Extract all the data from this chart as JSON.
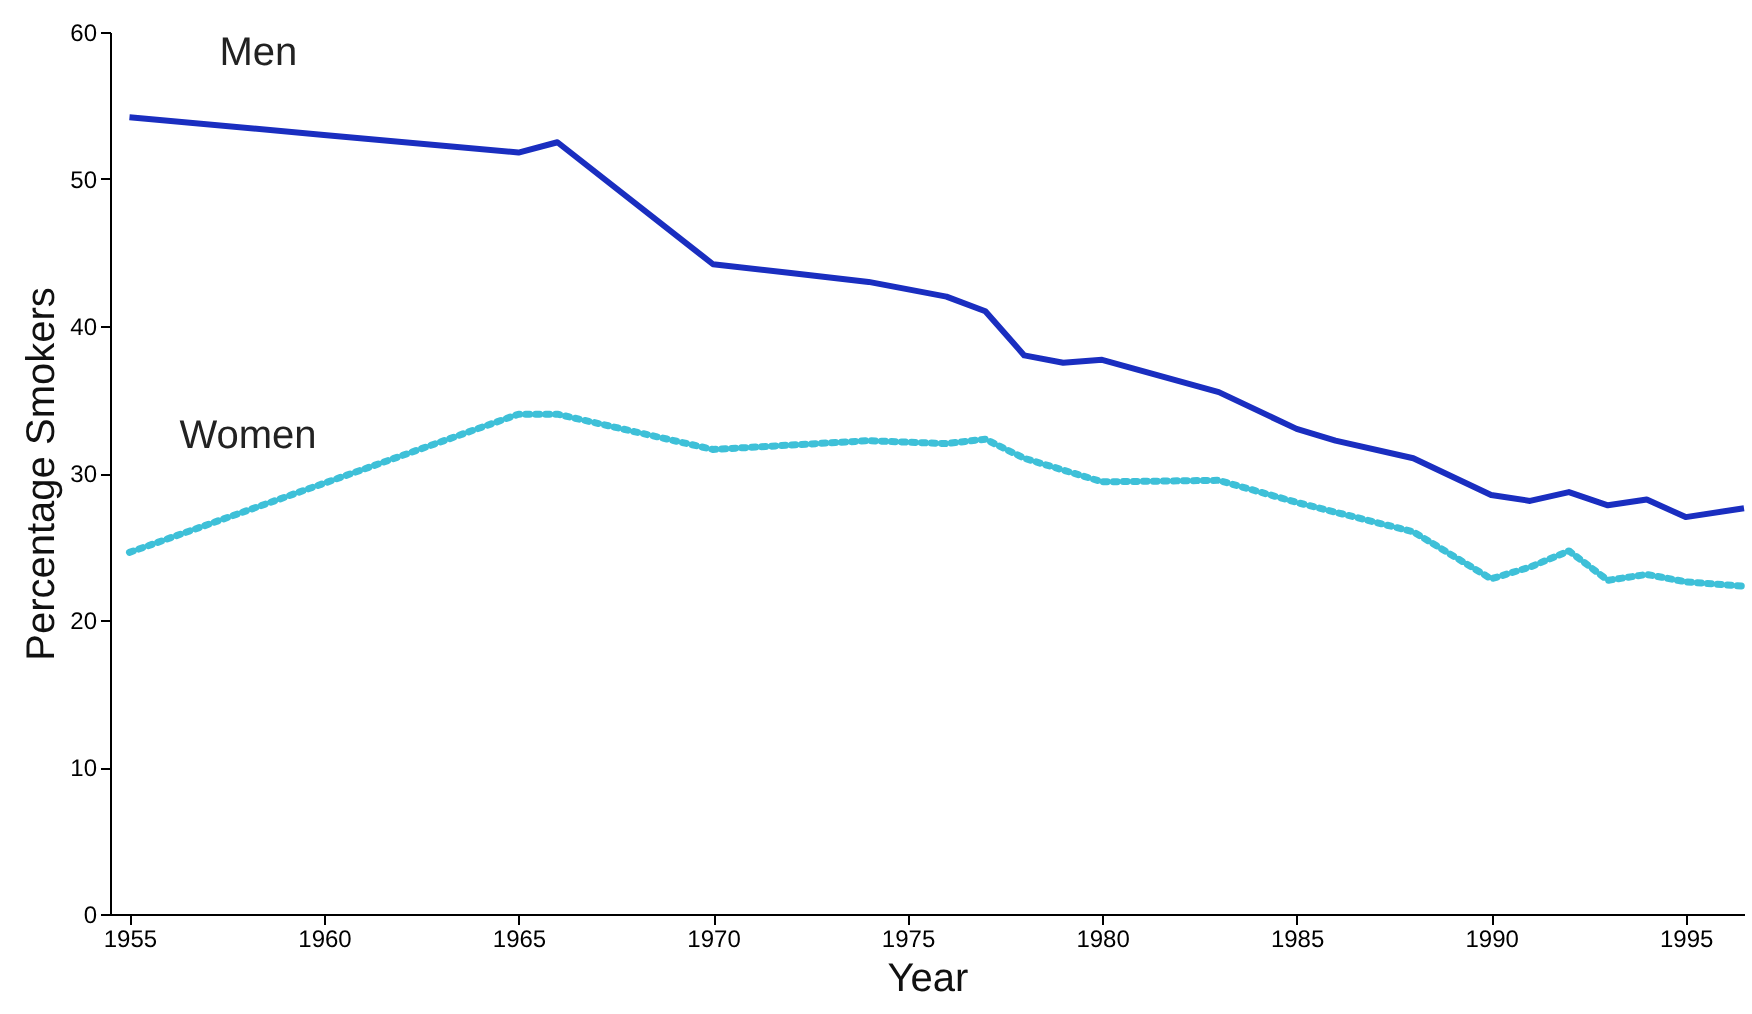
{
  "chart_data": {
    "type": "line",
    "xlabel": "Year",
    "ylabel": "Percentage Smokers",
    "xlim": [
      1954.5,
      1996.5
    ],
    "ylim": [
      0,
      60
    ],
    "xticks": [
      1955,
      1960,
      1965,
      1970,
      1975,
      1980,
      1985,
      1990,
      1995
    ],
    "yticks": [
      0,
      10,
      20,
      30,
      40,
      50,
      60
    ],
    "grid": false,
    "series": [
      {
        "name": "Men",
        "color": "#1a2ec0",
        "line_style": "solid",
        "x": [
          1955,
          1960,
          1965,
          1966,
          1970,
          1972,
          1974,
          1976,
          1977,
          1978,
          1979,
          1980,
          1983,
          1985,
          1986,
          1988,
          1990,
          1991,
          1992,
          1993,
          1994,
          1995,
          1996.5
        ],
        "values": [
          54.2,
          53.0,
          51.8,
          52.5,
          44.2,
          43.6,
          43.0,
          42.0,
          41.0,
          38.0,
          37.5,
          37.7,
          35.5,
          33.0,
          32.2,
          31.0,
          28.5,
          28.1,
          28.7,
          27.8,
          28.2,
          27.0,
          27.6
        ]
      },
      {
        "name": "Women",
        "color": "#3ec0d8",
        "line_style": "dotted",
        "x": [
          1955,
          1960,
          1965,
          1966,
          1968,
          1970,
          1972,
          1974,
          1976,
          1977,
          1978,
          1980,
          1983,
          1985,
          1988,
          1990,
          1991,
          1992,
          1993,
          1994,
          1995,
          1996.5
        ],
        "values": [
          24.6,
          29.3,
          34.0,
          34.0,
          32.8,
          31.6,
          31.9,
          32.2,
          32.0,
          32.3,
          31.0,
          29.4,
          29.5,
          28.0,
          26.0,
          22.8,
          23.6,
          24.7,
          22.7,
          23.1,
          22.6,
          22.3
        ]
      }
    ]
  }
}
